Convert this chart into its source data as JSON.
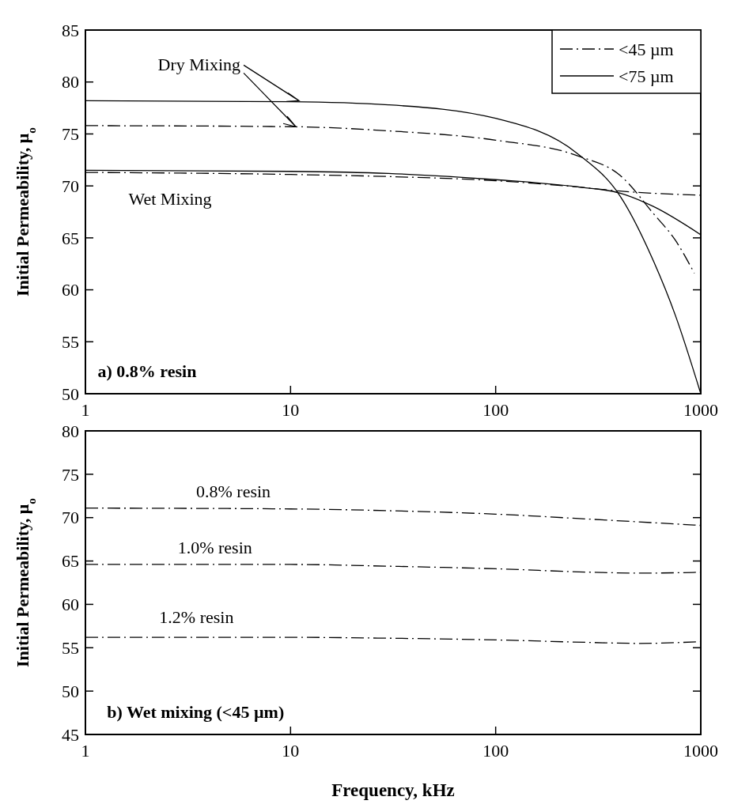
{
  "chart_data": [
    {
      "type": "line",
      "ylabel": "Initial Permeability, μ$_{o}$",
      "xlim": [
        1,
        1000
      ],
      "ylim": [
        50,
        85
      ],
      "log": "x",
      "xticks": [
        1,
        10,
        100,
        1000
      ],
      "yticks": [
        50,
        55,
        60,
        65,
        70,
        75,
        80,
        85
      ],
      "legend": "top right",
      "grid": false,
      "annotations": [
        {
          "text": "Dry Mixing",
          "x": 11,
          "y": 78.2
        },
        "Wet Mixing",
        "a)  0.8% resin"
      ],
      "series": [
        {
          "name": "<45 µm",
          "color": "#000000",
          "line_style": "dashed",
          "x": [
            1,
            10,
            30,
            100,
            251,
            405,
            590,
            750,
            930
          ],
          "values": [
            75.8,
            75.7,
            75.3,
            74.4,
            72.9,
            71,
            67.3,
            64.8,
            61.6
          ]
        },
        {
          "name": "<75 µm",
          "color": "#000000",
          "line_style": "solid",
          "x": [
            1,
            10,
            30,
            100,
            251,
            405,
            590,
            750,
            1000
          ],
          "values": [
            78.2,
            78.1,
            77.8,
            76.5,
            73.1,
            69,
            62.7,
            57.6,
            50
          ]
        },
        {
          "color": "#000000",
          "line_style": "dashed",
          "x": [
            1,
            10,
            30,
            100,
            251,
            405,
            1000
          ],
          "values": [
            71.3,
            71.1,
            70.9,
            70.5,
            69.9,
            69.5,
            69.1
          ]
        },
        {
          "color": "#000000",
          "line_style": "solid",
          "x": [
            1,
            10,
            30,
            100,
            251,
            405,
            590,
            1000
          ],
          "values": [
            71.5,
            71.4,
            71.2,
            70.6,
            69.9,
            69.3,
            68,
            65.3
          ]
        }
      ]
    },
    {
      "type": "line",
      "xlabel": "Frequency, kHz",
      "ylabel": "Initial Permeability, μ$_{o}$",
      "xlim": [
        1,
        1000
      ],
      "ylim": [
        45,
        80
      ],
      "log": "x",
      "xticks": [
        1,
        10,
        100,
        1000
      ],
      "yticks": [
        45,
        50,
        55,
        60,
        65,
        70,
        75,
        80
      ],
      "legend": false,
      "grid": false,
      "annotations": [
        "b)  Wet mixing (<45 µm)"
      ],
      "series": [
        {
          "name": "0.8% resin",
          "color": "#000000",
          "line_style": "dashed",
          "x": [
            1,
            10,
            30,
            100,
            300,
            1000
          ],
          "values": [
            71.1,
            71,
            70.8,
            70.4,
            69.8,
            69.1
          ]
        },
        {
          "name": "1.0% resin",
          "color": "#000000",
          "line_style": "dashed",
          "x": [
            1,
            10,
            30,
            100,
            300,
            500,
            1000
          ],
          "values": [
            64.6,
            64.6,
            64.4,
            64.1,
            63.7,
            63.6,
            63.7
          ]
        },
        {
          "name": "1.2% resin",
          "color": "#000000",
          "line_style": "dashed",
          "x": [
            1,
            10,
            30,
            100,
            300,
            500,
            1000
          ],
          "values": [
            56.2,
            56.2,
            56.1,
            55.9,
            55.6,
            55.5,
            55.7
          ]
        }
      ]
    }
  ]
}
